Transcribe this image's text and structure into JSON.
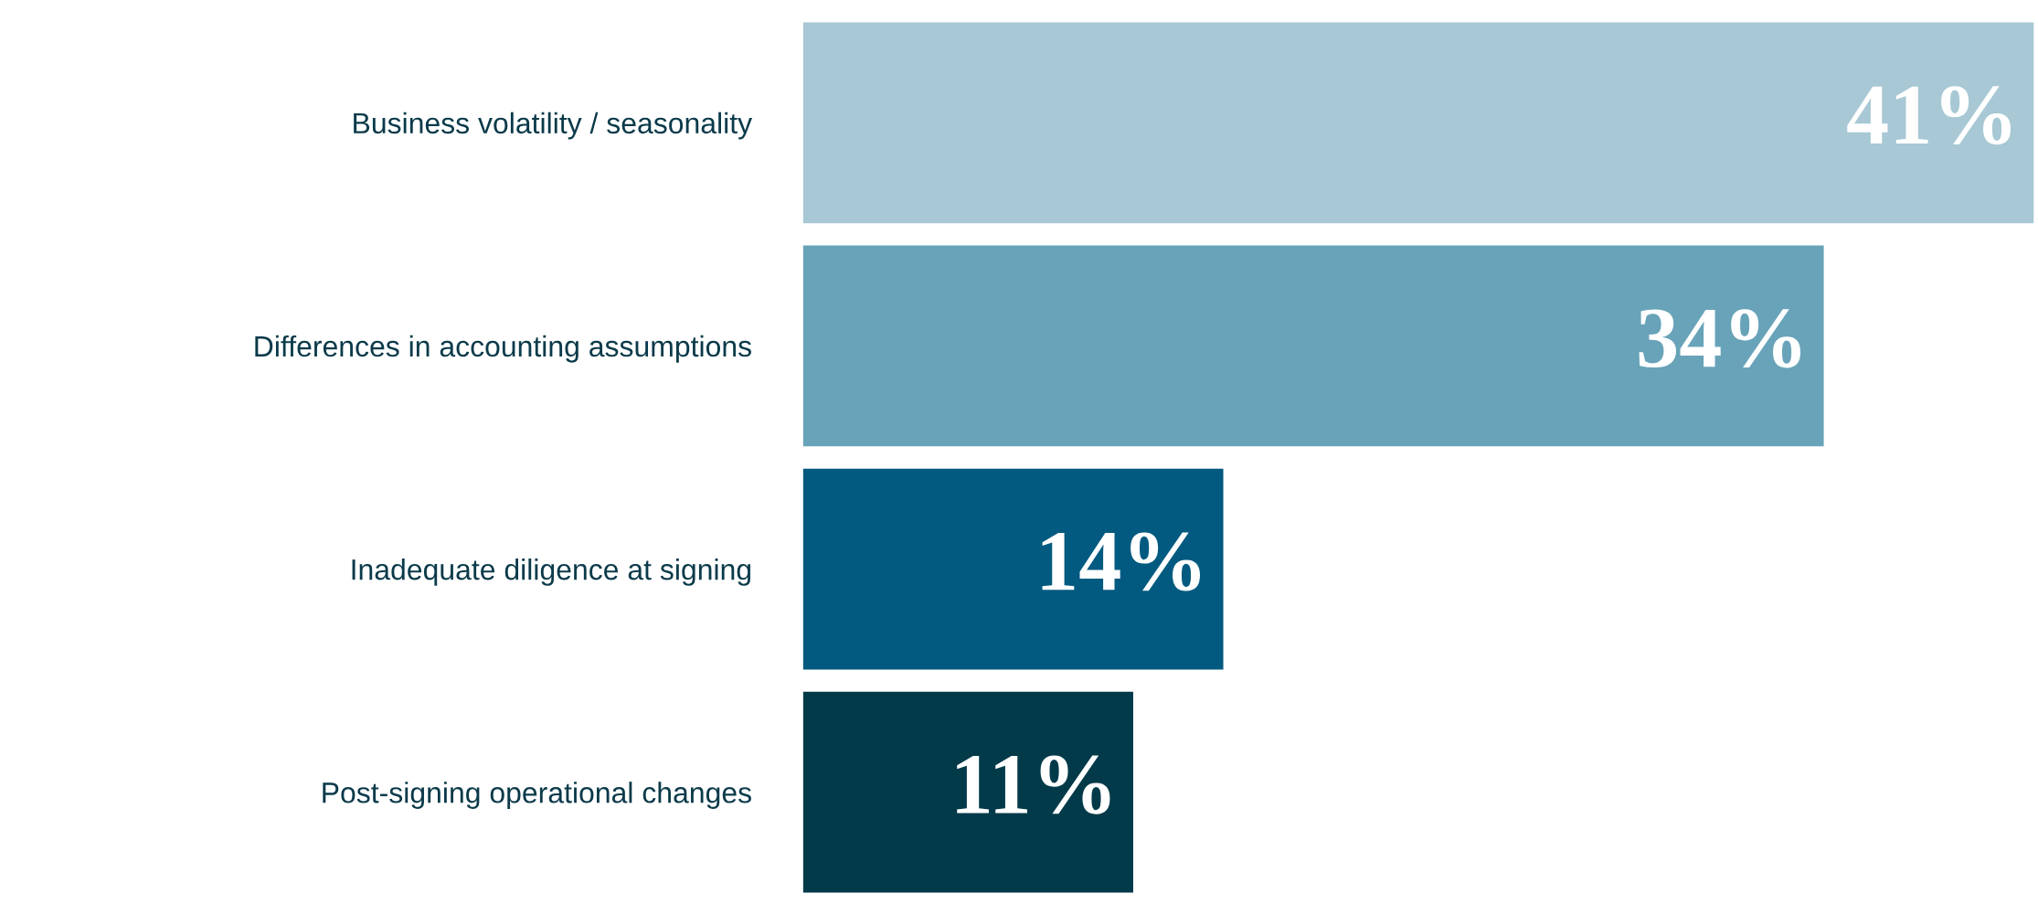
{
  "chart_data": {
    "type": "bar",
    "orientation": "horizontal",
    "categories": [
      "Business volatility / seasonality",
      "Differences in accounting assumptions",
      "Inadequate diligence at signing",
      "Post-signing operational changes"
    ],
    "values": [
      41,
      34,
      14,
      11
    ],
    "colors": [
      "#a7c8d4",
      "#68a3b9",
      "#025a80",
      "#023a4a"
    ],
    "value_labels": [
      "41%",
      "34%",
      "14%",
      "11%"
    ]
  }
}
